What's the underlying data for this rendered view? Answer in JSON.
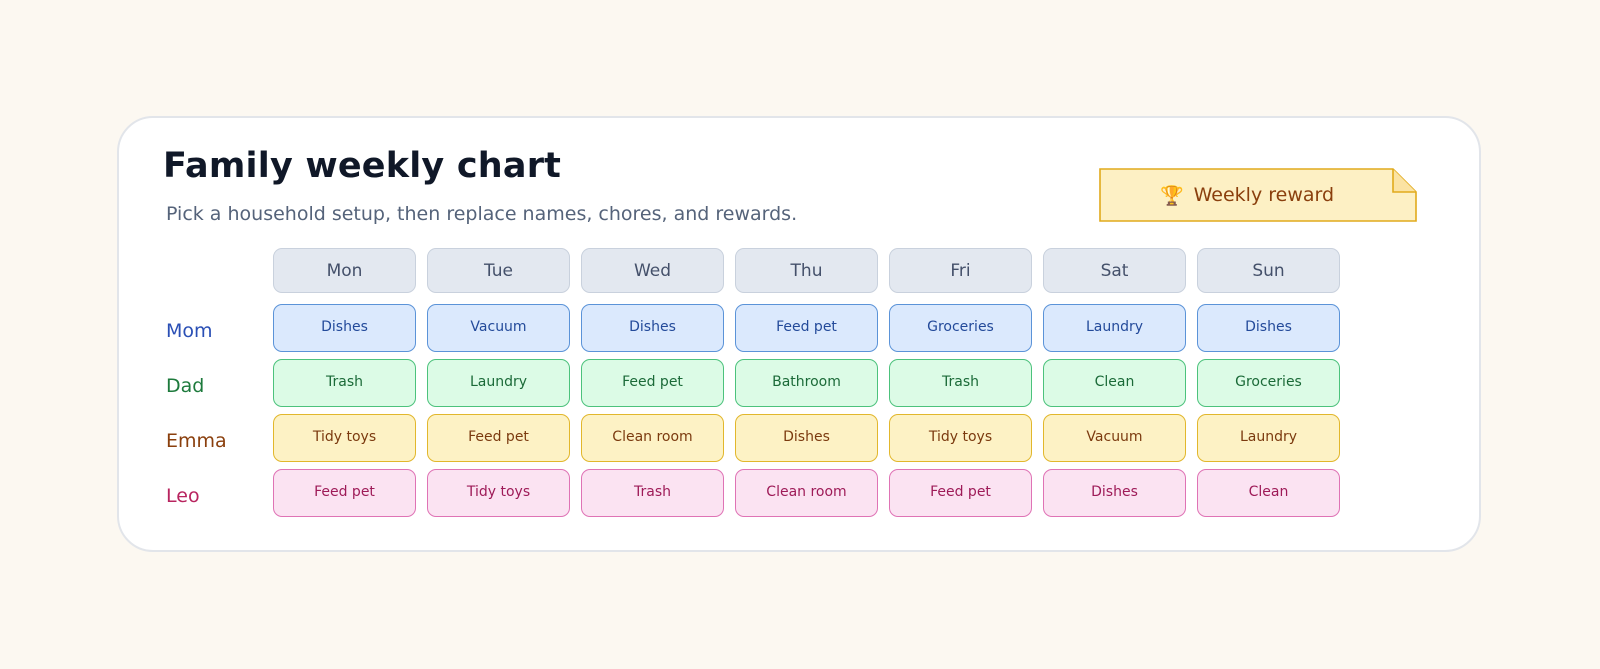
{
  "title": "Family weekly chart",
  "subtitle": "Pick a household setup, then replace names, chores, and rewards.",
  "reward": {
    "label": "Weekly reward",
    "icon": "trophy-icon",
    "glyph": "🏆"
  },
  "days": [
    "Mon",
    "Tue",
    "Wed",
    "Thu",
    "Fri",
    "Sat",
    "Sun"
  ],
  "members": [
    {
      "name": "Mom",
      "color": "#2a4fb5",
      "chores": [
        "Dishes",
        "Vacuum",
        "Dishes",
        "Feed pet",
        "Groceries",
        "Laundry",
        "Dishes"
      ]
    },
    {
      "name": "Dad",
      "color": "#1d7a3c",
      "chores": [
        "Trash",
        "Laundry",
        "Feed pet",
        "Bathroom",
        "Trash",
        "Clean",
        "Groceries"
      ]
    },
    {
      "name": "Emma",
      "color": "#8a3f0d",
      "chores": [
        "Tidy toys",
        "Feed pet",
        "Clean room",
        "Dishes",
        "Tidy toys",
        "Vacuum",
        "Laundry"
      ]
    },
    {
      "name": "Leo",
      "color": "#b8245f",
      "chores": [
        "Feed pet",
        "Tidy toys",
        "Trash",
        "Clean room",
        "Feed pet",
        "Dishes",
        "Clean"
      ]
    }
  ]
}
